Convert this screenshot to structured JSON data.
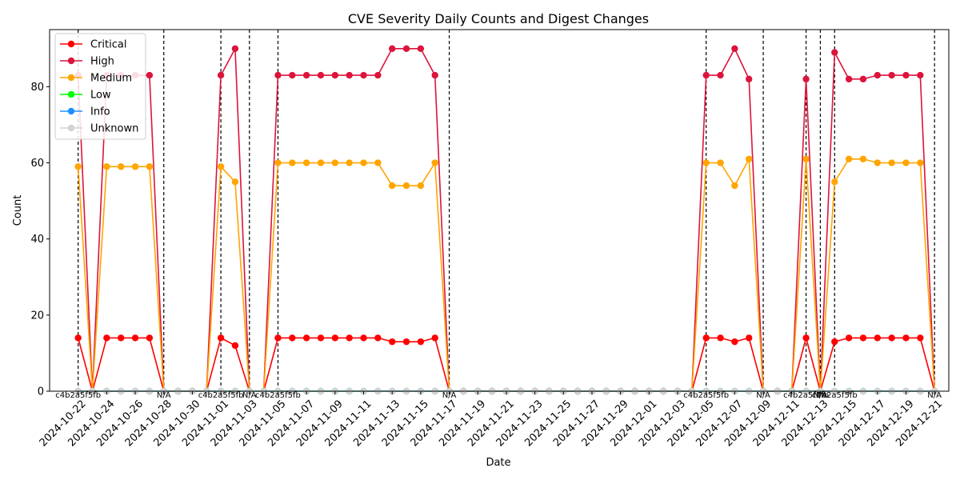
{
  "chart_data": {
    "type": "line",
    "title": "CVE Severity Daily Counts and Digest Changes",
    "xlabel": "Date",
    "ylabel": "Count",
    "x_start": "2024-10-20",
    "x_end": "2024-12-22",
    "ylim": [
      0,
      95
    ],
    "yticks": [
      0,
      20,
      40,
      60,
      80
    ],
    "grid": false,
    "legend_position": "top-left",
    "xtick_labels": [
      "2024-10-22",
      "2024-10-24",
      "2024-10-26",
      "2024-10-28",
      "2024-10-30",
      "2024-11-01",
      "2024-11-03",
      "2024-11-05",
      "2024-11-07",
      "2024-11-09",
      "2024-11-11",
      "2024-11-13",
      "2024-11-15",
      "2024-11-17",
      "2024-11-19",
      "2024-11-21",
      "2024-11-23",
      "2024-11-25",
      "2024-11-27",
      "2024-11-29",
      "2024-12-01",
      "2024-12-03",
      "2024-12-05",
      "2024-12-07",
      "2024-12-09",
      "2024-12-11",
      "2024-12-13",
      "2024-12-15",
      "2024-12-17",
      "2024-12-19",
      "2024-12-21"
    ],
    "dates": [
      "2024-10-22",
      "2024-10-23",
      "2024-10-24",
      "2024-10-25",
      "2024-10-26",
      "2024-10-27",
      "2024-10-28",
      "2024-10-29",
      "2024-10-30",
      "2024-10-31",
      "2024-11-01",
      "2024-11-02",
      "2024-11-03",
      "2024-11-04",
      "2024-11-05",
      "2024-11-06",
      "2024-11-07",
      "2024-11-08",
      "2024-11-09",
      "2024-11-10",
      "2024-11-11",
      "2024-11-12",
      "2024-11-13",
      "2024-11-14",
      "2024-11-15",
      "2024-11-16",
      "2024-11-17",
      "2024-11-18",
      "2024-11-19",
      "2024-11-20",
      "2024-11-21",
      "2024-11-22",
      "2024-11-23",
      "2024-11-24",
      "2024-11-25",
      "2024-11-26",
      "2024-11-27",
      "2024-11-28",
      "2024-11-29",
      "2024-11-30",
      "2024-12-01",
      "2024-12-02",
      "2024-12-03",
      "2024-12-04",
      "2024-12-05",
      "2024-12-06",
      "2024-12-07",
      "2024-12-08",
      "2024-12-09",
      "2024-12-10",
      "2024-12-11",
      "2024-12-12",
      "2024-12-13",
      "2024-12-14",
      "2024-12-15",
      "2024-12-16",
      "2024-12-17",
      "2024-12-18",
      "2024-12-19",
      "2024-12-20",
      "2024-12-21"
    ],
    "series": [
      {
        "name": "Critical",
        "color": "#ff0000",
        "values": [
          14,
          0,
          14,
          14,
          14,
          14,
          0,
          0,
          0,
          0,
          14,
          12,
          0,
          0,
          14,
          14,
          14,
          14,
          14,
          14,
          14,
          14,
          13,
          13,
          13,
          14,
          0,
          0,
          0,
          0,
          0,
          0,
          0,
          0,
          0,
          0,
          0,
          0,
          0,
          0,
          0,
          0,
          0,
          0,
          14,
          14,
          13,
          14,
          0,
          0,
          0,
          14,
          0,
          13,
          14,
          14,
          14,
          14,
          14,
          14,
          0
        ]
      },
      {
        "name": "High",
        "color": "#dc143c",
        "values": [
          83,
          0,
          83,
          83,
          83,
          83,
          0,
          0,
          0,
          0,
          83,
          90,
          0,
          0,
          83,
          83,
          83,
          83,
          83,
          83,
          83,
          83,
          90,
          90,
          90,
          83,
          0,
          0,
          0,
          0,
          0,
          0,
          0,
          0,
          0,
          0,
          0,
          0,
          0,
          0,
          0,
          0,
          0,
          0,
          83,
          83,
          90,
          82,
          0,
          0,
          0,
          82,
          0,
          89,
          82,
          82,
          83,
          83,
          83,
          83,
          0
        ]
      },
      {
        "name": "Medium",
        "color": "#ffa500",
        "values": [
          59,
          0,
          59,
          59,
          59,
          59,
          0,
          0,
          0,
          0,
          59,
          55,
          0,
          0,
          60,
          60,
          60,
          60,
          60,
          60,
          60,
          60,
          54,
          54,
          54,
          60,
          0,
          0,
          0,
          0,
          0,
          0,
          0,
          0,
          0,
          0,
          0,
          0,
          0,
          0,
          0,
          0,
          0,
          0,
          60,
          60,
          54,
          61,
          0,
          0,
          0,
          61,
          0,
          55,
          61,
          61,
          60,
          60,
          60,
          60,
          0
        ]
      },
      {
        "name": "Low",
        "color": "#00ff00",
        "values": [
          0,
          0,
          0,
          0,
          0,
          0,
          0,
          0,
          0,
          0,
          0,
          0,
          0,
          0,
          0,
          0,
          0,
          0,
          0,
          0,
          0,
          0,
          0,
          0,
          0,
          0,
          0,
          0,
          0,
          0,
          0,
          0,
          0,
          0,
          0,
          0,
          0,
          0,
          0,
          0,
          0,
          0,
          0,
          0,
          0,
          0,
          0,
          0,
          0,
          0,
          0,
          0,
          0,
          0,
          0,
          0,
          0,
          0,
          0,
          0,
          0
        ]
      },
      {
        "name": "Info",
        "color": "#1e90ff",
        "values": [
          0,
          0,
          0,
          0,
          0,
          0,
          0,
          0,
          0,
          0,
          0,
          0,
          0,
          0,
          0,
          0,
          0,
          0,
          0,
          0,
          0,
          0,
          0,
          0,
          0,
          0,
          0,
          0,
          0,
          0,
          0,
          0,
          0,
          0,
          0,
          0,
          0,
          0,
          0,
          0,
          0,
          0,
          0,
          0,
          0,
          0,
          0,
          0,
          0,
          0,
          0,
          0,
          0,
          0,
          0,
          0,
          0,
          0,
          0,
          0,
          0
        ]
      },
      {
        "name": "Unknown",
        "color": "#d3d3d3",
        "values": [
          0,
          0,
          0,
          0,
          0,
          0,
          0,
          0,
          0,
          0,
          0,
          0,
          0,
          0,
          0,
          0,
          0,
          0,
          0,
          0,
          0,
          0,
          0,
          0,
          0,
          0,
          0,
          0,
          0,
          0,
          0,
          0,
          0,
          0,
          0,
          0,
          0,
          0,
          0,
          0,
          0,
          0,
          0,
          0,
          0,
          0,
          0,
          0,
          0,
          0,
          0,
          0,
          0,
          0,
          0,
          0,
          0,
          0,
          0,
          0,
          0
        ]
      }
    ],
    "digest_changes": [
      {
        "date": "2024-10-22",
        "label": "c4b2a5f5fb",
        "anchor": "middle"
      },
      {
        "date": "2024-10-28",
        "label": "N/A",
        "anchor": "middle"
      },
      {
        "date": "2024-11-01",
        "label": "c4b2a5f5fb",
        "anchor": "middle"
      },
      {
        "date": "2024-11-03",
        "label": "N/A",
        "anchor": "middle"
      },
      {
        "date": "2024-11-05",
        "label": "c4b2a5f5fb",
        "anchor": "middle"
      },
      {
        "date": "2024-11-17",
        "label": "N/A",
        "anchor": "middle"
      },
      {
        "date": "2024-12-05",
        "label": "c4b2a5f5fb",
        "anchor": "middle"
      },
      {
        "date": "2024-12-09",
        "label": "N/A",
        "anchor": "middle"
      },
      {
        "date": "2024-12-12",
        "label": "c4b2a5f5fb",
        "anchor": "middle"
      },
      {
        "date": "2024-12-13",
        "label": "N/A",
        "anchor": "middle"
      },
      {
        "date": "2024-12-14",
        "label": "c4b2a5f5fb",
        "anchor": "middle"
      },
      {
        "date": "2024-12-21",
        "label": "N/A",
        "anchor": "middle"
      }
    ]
  }
}
